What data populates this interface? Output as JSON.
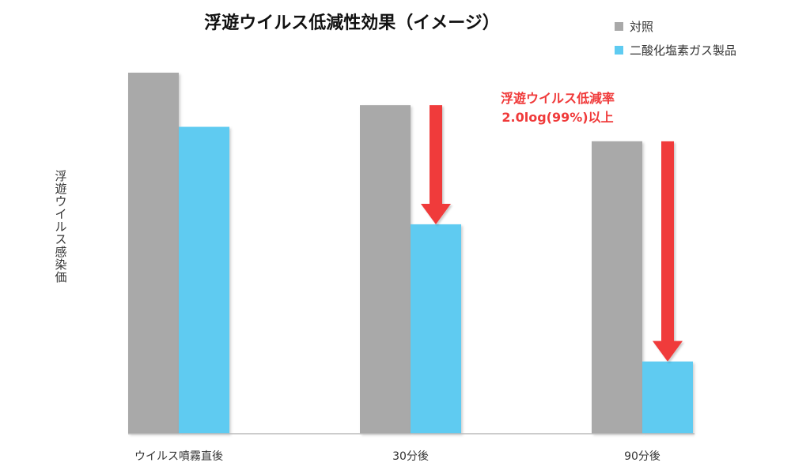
{
  "chart_data": {
    "type": "bar",
    "title": "浮遊ウイルス低減性効果（イメージ）",
    "xlabel": "",
    "ylabel": "浮遊ウイルス感染価",
    "categories": [
      "ウイルス噴霧直後",
      "30分後",
      "90分後"
    ],
    "series": [
      {
        "name": "対照",
        "color": "#a9a9a9",
        "values": [
          100,
          91,
          81
        ]
      },
      {
        "name": "二酸化塩素ガス製品",
        "color": "#5ecbf1",
        "values": [
          85,
          58,
          20
        ]
      }
    ],
    "value_scale": "relative (no numeric axis shown; tallest control bar = 100)",
    "ylim": [
      0,
      100
    ],
    "grid": false,
    "legend_position": "top-right",
    "annotation": {
      "line1": "浮遊ウイルス低減率",
      "line2": "2.0log(99%)以上",
      "color": "#f03a3a"
    },
    "arrows_at_categories": [
      "30分後",
      "90分後"
    ]
  }
}
